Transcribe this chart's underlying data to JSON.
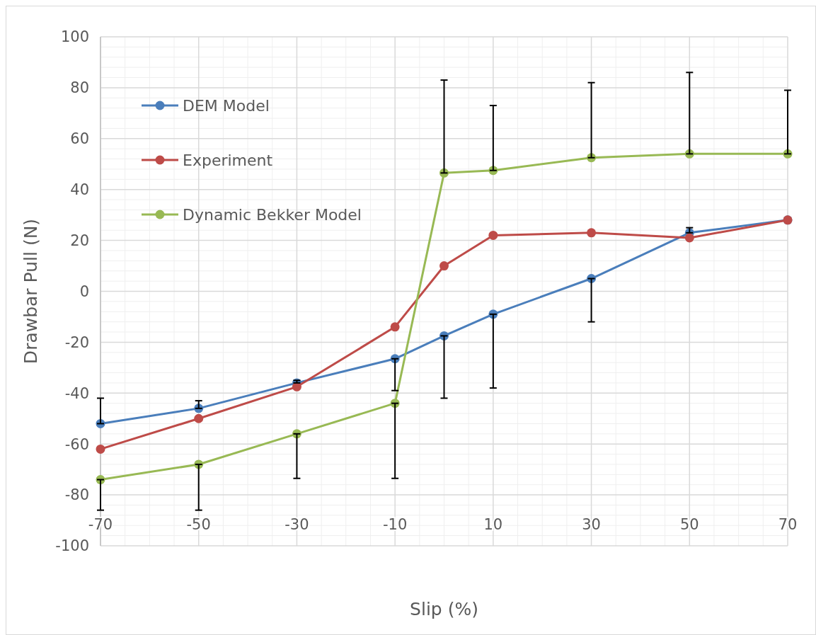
{
  "chart_data": {
    "type": "line",
    "xlabel": "Slip (%)",
    "ylabel": "Drawbar Pull (N)",
    "x": [
      -70,
      -50,
      -30,
      -10,
      0,
      10,
      30,
      50,
      70
    ],
    "xlim": [
      -70,
      70
    ],
    "xticks": [
      -70,
      -50,
      -30,
      -10,
      10,
      30,
      50,
      70
    ],
    "ylim": [
      -100,
      100
    ],
    "yticks": [
      -100,
      -80,
      -60,
      -40,
      -20,
      0,
      20,
      40,
      60,
      80,
      100
    ],
    "grid": true,
    "legend": "top left",
    "marker": "circle",
    "line_style": "solid",
    "series": [
      {
        "name": "DEM Model",
        "color": "#4a7ebb",
        "values": [
          -52,
          -46,
          -36,
          -26.5,
          -17.5,
          -9,
          5,
          23,
          28
        ],
        "errors": [
          [
            -52,
            -42
          ],
          [
            -46,
            -43
          ],
          [
            -36,
            -35
          ],
          [
            -39,
            -26.5
          ],
          [
            -42,
            -17.5
          ],
          [
            -38,
            -9
          ],
          [
            -12,
            5
          ],
          [
            23,
            25
          ],
          null
        ]
      },
      {
        "name": "Experiment",
        "color": "#be4b48",
        "values": [
          -62,
          -50,
          -37.5,
          -14,
          10,
          22,
          23,
          21,
          28
        ]
      },
      {
        "name": "Dynamic Bekker Model",
        "color": "#98b954",
        "values": [
          -74,
          -68,
          -56,
          -44,
          46.5,
          47.5,
          52.5,
          54,
          54
        ],
        "errors": [
          [
            -86,
            -74
          ],
          [
            -86,
            -68
          ],
          [
            -73.5,
            -56
          ],
          [
            -73.5,
            -44
          ],
          [
            46.5,
            83
          ],
          [
            47.5,
            73
          ],
          [
            52.5,
            82
          ],
          [
            54,
            86
          ],
          [
            54,
            79
          ]
        ]
      }
    ]
  }
}
